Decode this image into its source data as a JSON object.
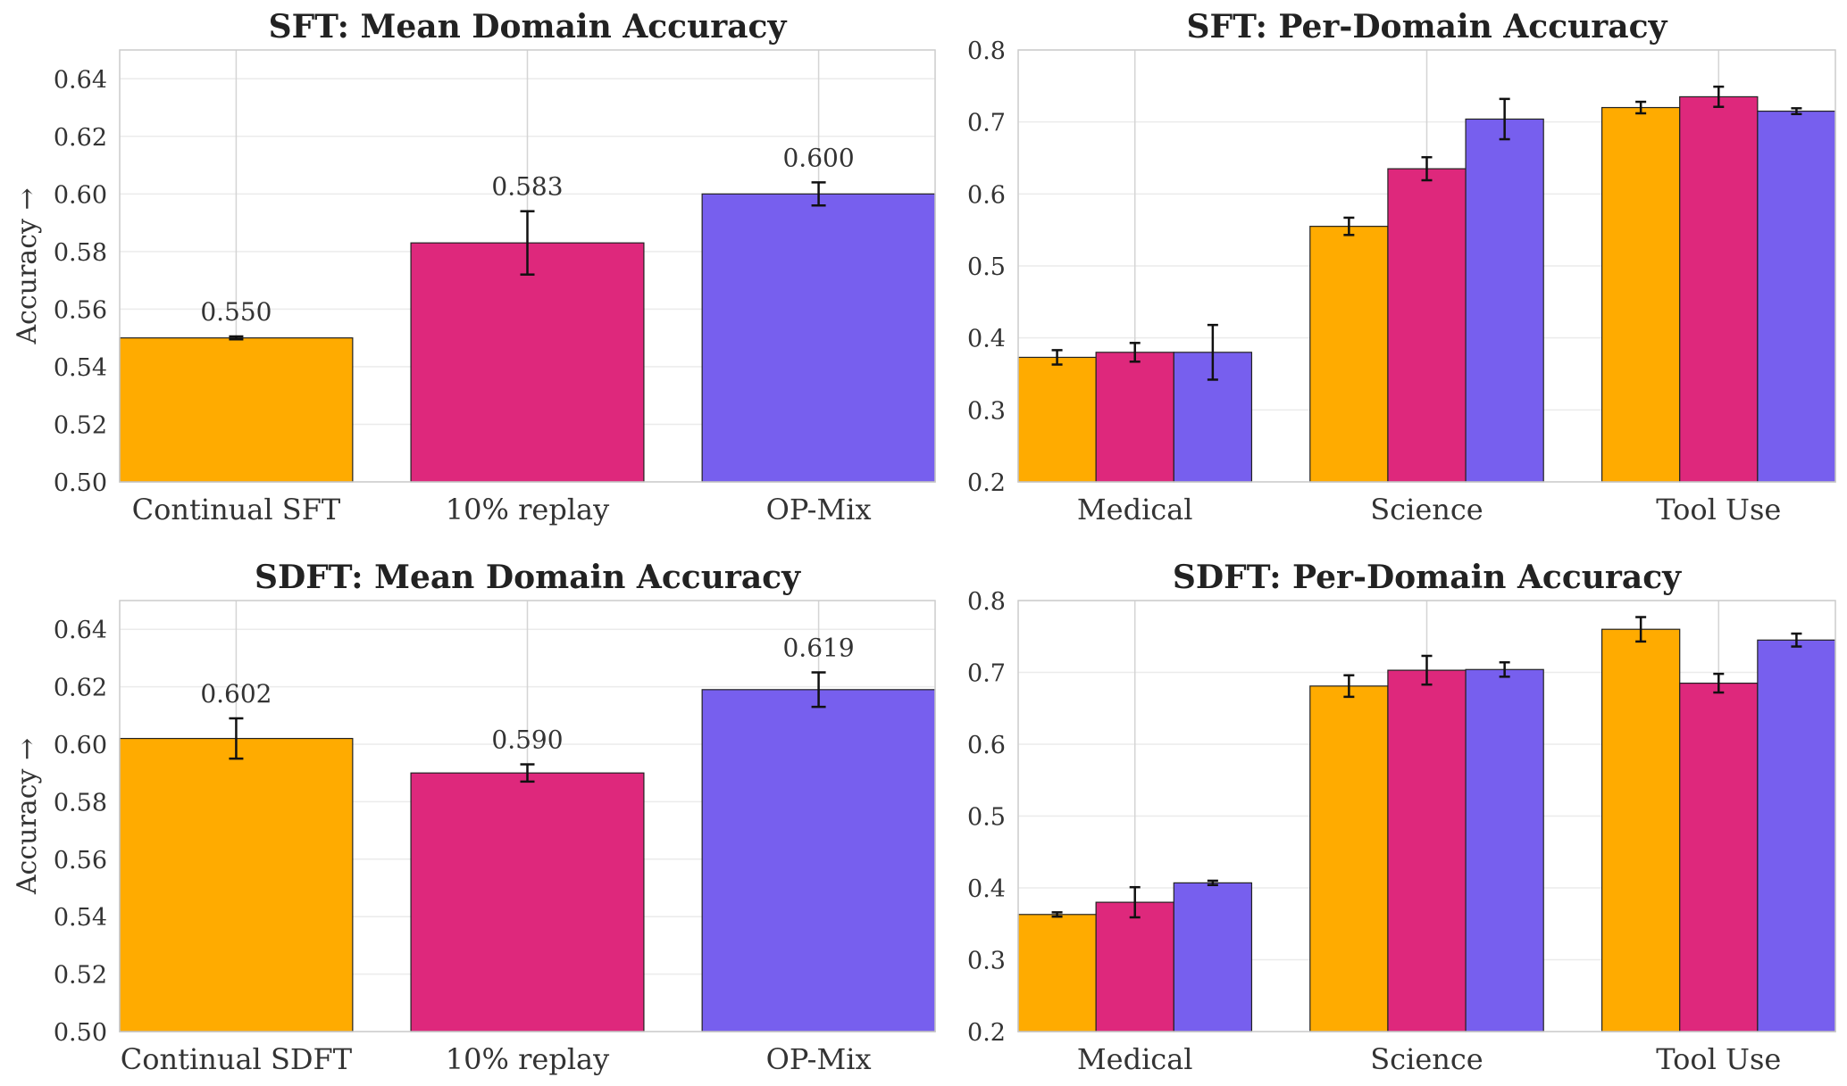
{
  "colors": {
    "series1": "#FFAB00",
    "series2": "#DE287C",
    "series3": "#775FEE"
  },
  "chart_data": [
    {
      "type": "bar",
      "title": "SFT: Mean Domain Accuracy",
      "ylabel": "Accuracy →",
      "categories": [
        "Continual SFT",
        "10% replay",
        "OP-Mix"
      ],
      "values": [
        0.55,
        0.583,
        0.6
      ],
      "errors": [
        0.0005,
        0.011,
        0.004
      ],
      "data_labels": [
        "0.550",
        "0.583",
        "0.600"
      ],
      "ylim": [
        0.5,
        0.65
      ],
      "yticks": [
        0.5,
        0.52,
        0.54,
        0.56,
        0.58,
        0.6,
        0.62,
        0.64
      ],
      "ytick_labels": [
        "0.50",
        "0.52",
        "0.54",
        "0.56",
        "0.58",
        "0.60",
        "0.62",
        "0.64"
      ],
      "grid": true
    },
    {
      "type": "bar",
      "title": "SFT: Per-Domain Accuracy",
      "ylabel": "",
      "categories": [
        "Medical",
        "Science",
        "Tool Use"
      ],
      "series": [
        {
          "values": [
            0.373,
            0.555,
            0.72
          ],
          "errors": [
            0.01,
            0.012,
            0.008
          ]
        },
        {
          "values": [
            0.38,
            0.635,
            0.735
          ],
          "errors": [
            0.013,
            0.016,
            0.014
          ]
        },
        {
          "values": [
            0.38,
            0.704,
            0.715
          ],
          "errors": [
            0.038,
            0.028,
            0.004
          ]
        }
      ],
      "ylim": [
        0.2,
        0.8
      ],
      "yticks": [
        0.2,
        0.3,
        0.4,
        0.5,
        0.6,
        0.7,
        0.8
      ],
      "ytick_labels": [
        "0.2",
        "0.3",
        "0.4",
        "0.5",
        "0.6",
        "0.7",
        "0.8"
      ],
      "grid": true
    },
    {
      "type": "bar",
      "title": "SDFT: Mean Domain Accuracy",
      "ylabel": "Accuracy →",
      "categories": [
        "Continual SDFT",
        "10% replay",
        "OP-Mix"
      ],
      "values": [
        0.602,
        0.59,
        0.619
      ],
      "errors": [
        0.007,
        0.003,
        0.006
      ],
      "data_labels": [
        "0.602",
        "0.590",
        "0.619"
      ],
      "ylim": [
        0.5,
        0.65
      ],
      "yticks": [
        0.5,
        0.52,
        0.54,
        0.56,
        0.58,
        0.6,
        0.62,
        0.64
      ],
      "ytick_labels": [
        "0.50",
        "0.52",
        "0.54",
        "0.56",
        "0.58",
        "0.60",
        "0.62",
        "0.64"
      ],
      "grid": true
    },
    {
      "type": "bar",
      "title": "SDFT: Per-Domain Accuracy",
      "ylabel": "",
      "categories": [
        "Medical",
        "Science",
        "Tool Use"
      ],
      "series": [
        {
          "values": [
            0.363,
            0.681,
            0.76
          ],
          "errors": [
            0.003,
            0.015,
            0.017
          ]
        },
        {
          "values": [
            0.38,
            0.703,
            0.685
          ],
          "errors": [
            0.021,
            0.02,
            0.013
          ]
        },
        {
          "values": [
            0.407,
            0.704,
            0.745
          ],
          "errors": [
            0.003,
            0.01,
            0.009
          ]
        }
      ],
      "ylim": [
        0.2,
        0.8
      ],
      "yticks": [
        0.2,
        0.3,
        0.4,
        0.5,
        0.6,
        0.7,
        0.8
      ],
      "ytick_labels": [
        "0.2",
        "0.3",
        "0.4",
        "0.5",
        "0.6",
        "0.7",
        "0.8"
      ],
      "grid": true
    }
  ]
}
